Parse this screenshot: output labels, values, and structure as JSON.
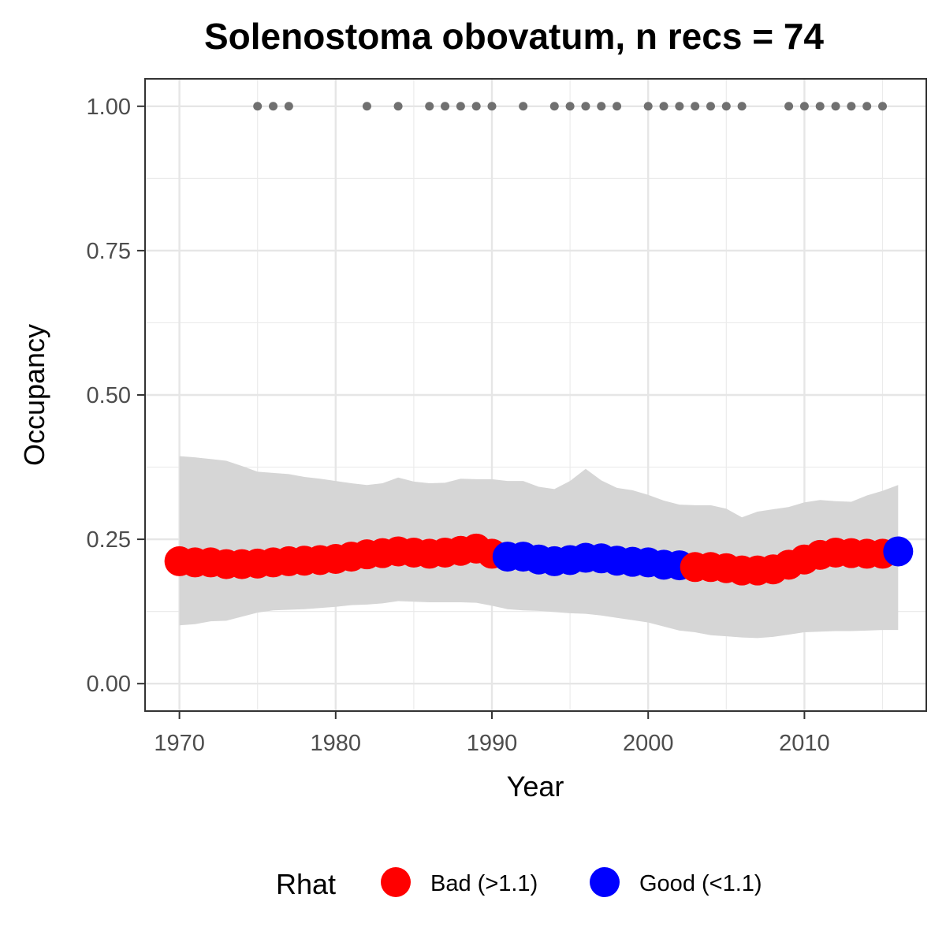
{
  "chart_data": {
    "type": "line",
    "title": "Solenostoma obovatum, n recs = 74",
    "xlabel": "Year",
    "ylabel": "Occupancy",
    "xlim": [
      1967.8,
      2017.8
    ],
    "ylim": [
      -0.0475,
      1.0475
    ],
    "x_ticks": [
      1970,
      1980,
      1990,
      2000,
      2010
    ],
    "x_tick_labels": [
      "1970",
      "1980",
      "1990",
      "2000",
      "2010"
    ],
    "y_ticks": [
      0,
      0.25,
      0.5,
      0.75,
      1
    ],
    "y_tick_labels": [
      "0.00",
      "0.25",
      "0.50",
      "0.75",
      "1.00"
    ],
    "x_minor_ticks": [
      1975,
      1985,
      1995,
      2005,
      2015
    ],
    "y_minor_ticks": [
      0.125,
      0.375,
      0.625,
      0.875
    ],
    "grid": true,
    "legend": {
      "title": "Rhat",
      "position": "bottom",
      "entries": [
        {
          "label": "Bad (>1.1)",
          "color": "#ff0000"
        },
        {
          "label": "Good (<1.1)",
          "color": "#0000ff"
        }
      ]
    },
    "colors": {
      "bad": "#ff0000",
      "good": "#0000ff",
      "ribbon": "#d6d6d6",
      "record": "#707070"
    },
    "years": [
      1970,
      1971,
      1972,
      1973,
      1974,
      1975,
      1976,
      1977,
      1978,
      1979,
      1980,
      1981,
      1982,
      1983,
      1984,
      1985,
      1986,
      1987,
      1988,
      1989,
      1990,
      1991,
      1992,
      1993,
      1994,
      1995,
      1996,
      1997,
      1998,
      1999,
      2000,
      2001,
      2002,
      2003,
      2004,
      2005,
      2006,
      2007,
      2008,
      2009,
      2010,
      2011,
      2012,
      2013,
      2014,
      2015,
      2016
    ],
    "series": [
      {
        "name": "Occupancy",
        "values": [
          0.212,
          0.21,
          0.21,
          0.207,
          0.207,
          0.208,
          0.21,
          0.212,
          0.213,
          0.214,
          0.216,
          0.22,
          0.224,
          0.226,
          0.229,
          0.227,
          0.225,
          0.227,
          0.23,
          0.234,
          0.225,
          0.22,
          0.22,
          0.215,
          0.212,
          0.214,
          0.218,
          0.217,
          0.213,
          0.211,
          0.21,
          0.206,
          0.205,
          0.202,
          0.202,
          0.2,
          0.196,
          0.196,
          0.198,
          0.206,
          0.215,
          0.223,
          0.227,
          0.226,
          0.225,
          0.225,
          0.229
        ],
        "rhat": [
          "Bad",
          "Bad",
          "Bad",
          "Bad",
          "Bad",
          "Bad",
          "Bad",
          "Bad",
          "Bad",
          "Bad",
          "Bad",
          "Bad",
          "Bad",
          "Bad",
          "Bad",
          "Bad",
          "Bad",
          "Bad",
          "Bad",
          "Bad",
          "Bad",
          "Good",
          "Good",
          "Good",
          "Good",
          "Good",
          "Good",
          "Good",
          "Good",
          "Good",
          "Good",
          "Good",
          "Good",
          "Bad",
          "Bad",
          "Bad",
          "Bad",
          "Bad",
          "Bad",
          "Bad",
          "Bad",
          "Bad",
          "Bad",
          "Bad",
          "Bad",
          "Bad",
          "Good"
        ],
        "lower": [
          0.101,
          0.103,
          0.108,
          0.109,
          0.116,
          0.123,
          0.127,
          0.128,
          0.129,
          0.131,
          0.133,
          0.136,
          0.137,
          0.139,
          0.143,
          0.142,
          0.141,
          0.141,
          0.141,
          0.14,
          0.135,
          0.129,
          0.127,
          0.126,
          0.124,
          0.122,
          0.121,
          0.118,
          0.114,
          0.11,
          0.106,
          0.099,
          0.092,
          0.089,
          0.084,
          0.082,
          0.08,
          0.079,
          0.081,
          0.085,
          0.089,
          0.09,
          0.091,
          0.091,
          0.092,
          0.093,
          0.093
        ],
        "upper": [
          0.394,
          0.392,
          0.389,
          0.386,
          0.377,
          0.367,
          0.365,
          0.363,
          0.358,
          0.355,
          0.351,
          0.347,
          0.344,
          0.347,
          0.357,
          0.35,
          0.347,
          0.348,
          0.355,
          0.354,
          0.354,
          0.351,
          0.351,
          0.341,
          0.337,
          0.351,
          0.372,
          0.352,
          0.339,
          0.335,
          0.327,
          0.317,
          0.31,
          0.309,
          0.309,
          0.303,
          0.288,
          0.298,
          0.302,
          0.306,
          0.314,
          0.318,
          0.316,
          0.315,
          0.326,
          0.334,
          0.344
        ]
      }
    ],
    "record_years": [
      1975,
      1976,
      1977,
      1982,
      1984,
      1986,
      1987,
      1988,
      1989,
      1990,
      1992,
      1994,
      1995,
      1996,
      1997,
      1998,
      2000,
      2001,
      2002,
      2003,
      2004,
      2005,
      2006,
      2009,
      2010,
      2011,
      2012,
      2013,
      2014,
      2015
    ],
    "record_value": 1.0
  }
}
